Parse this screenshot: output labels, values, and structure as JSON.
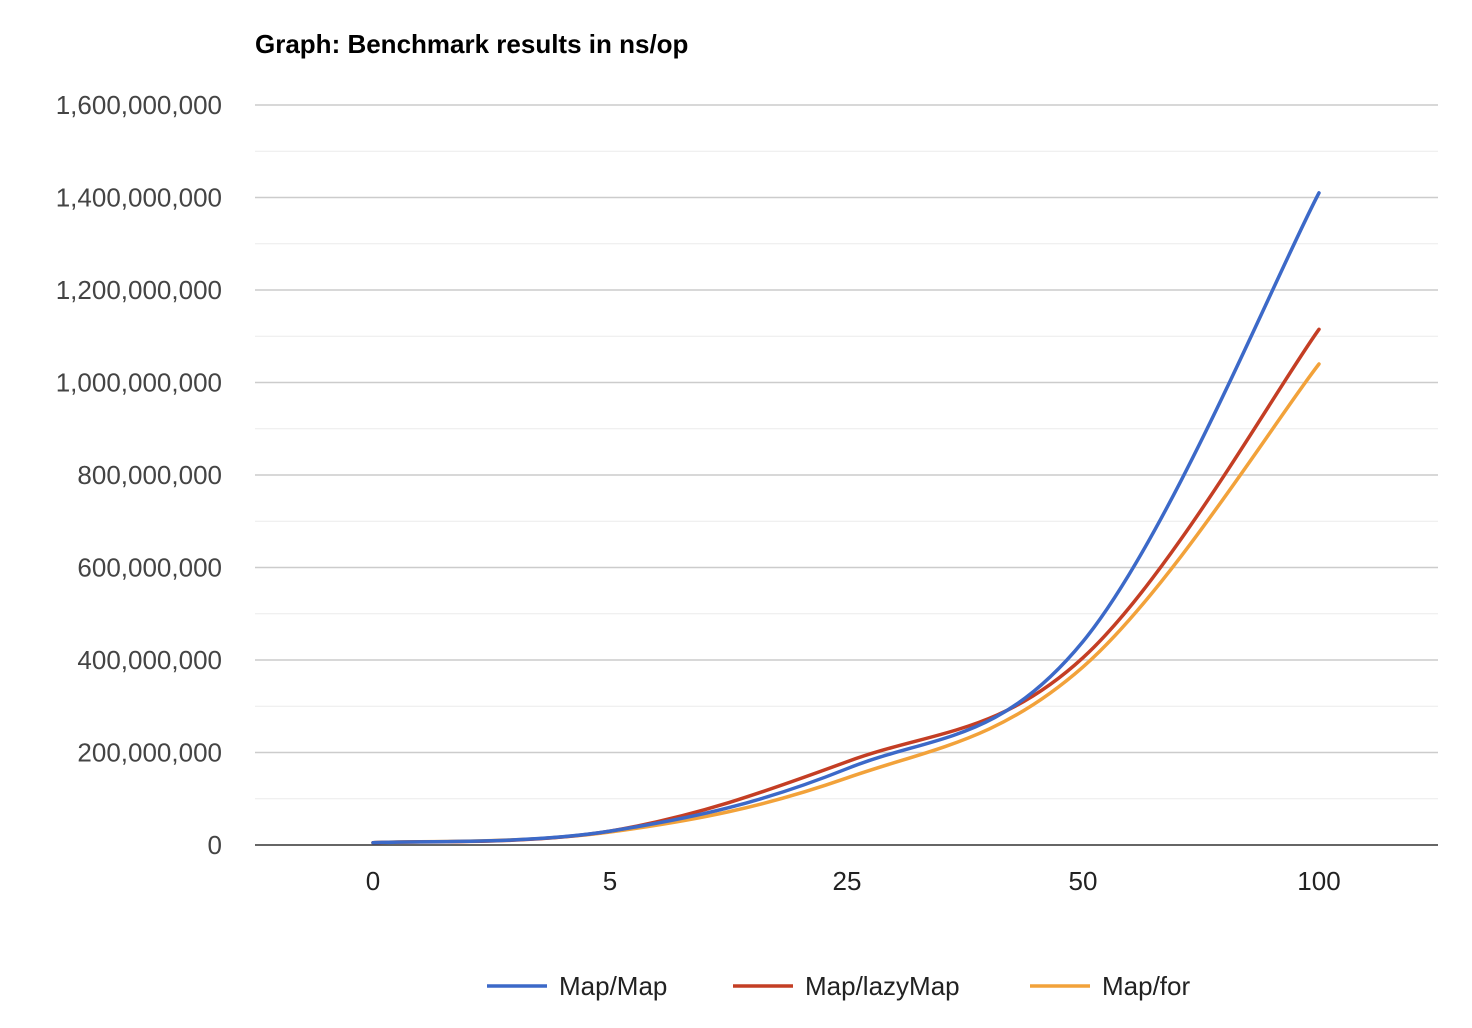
{
  "chart_data": {
    "type": "line",
    "title": "Graph: Benchmark results in ns/op",
    "xlabel": "",
    "ylabel": "",
    "categories": [
      "0",
      "5",
      "25",
      "50",
      "100"
    ],
    "ylim": [
      0,
      1600000000
    ],
    "yticks": [
      "0",
      "200,000,000",
      "400,000,000",
      "600,000,000",
      "800,000,000",
      "1,000,000,000",
      "1,200,000,000",
      "1,400,000,000",
      "1,600,000,000"
    ],
    "grid": true,
    "legend_position": "bottom",
    "series": [
      {
        "name": "Map/Map",
        "color": "#3c69c8",
        "values": [
          5000000,
          30000000,
          165000000,
          440000000,
          1410000000
        ]
      },
      {
        "name": "Map/lazyMap",
        "color": "#c43e24",
        "values": [
          5000000,
          30000000,
          180000000,
          405000000,
          1115000000
        ]
      },
      {
        "name": "Map/for",
        "color": "#f2a23a",
        "values": [
          5000000,
          28000000,
          145000000,
          385000000,
          1040000000
        ]
      }
    ]
  }
}
